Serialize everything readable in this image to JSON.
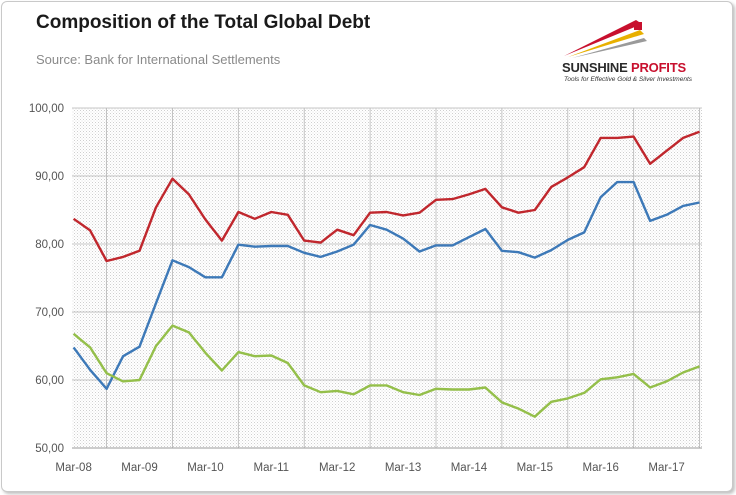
{
  "header": {
    "title": "Composition of the Total Global Debt",
    "subtitle": "Source: Bank for International Settlements"
  },
  "logo": {
    "name_part1": "SUNSHINE",
    "name_part2": "PROFITS",
    "tagline": "Tools for Effective Gold & Silver Investments",
    "colors": {
      "red": "#c8102e",
      "gold": "#e8b000",
      "dark": "#2b2b2b"
    }
  },
  "chart_data": {
    "type": "line",
    "title": "Composition of the Total Global Debt",
    "xlabel": "",
    "ylabel": "",
    "ylim": [
      50,
      100
    ],
    "yticks": [
      "50,00",
      "60,00",
      "70,00",
      "80,00",
      "90,00",
      "100,00"
    ],
    "xtick_labels": [
      "Mar-08",
      "Mar-09",
      "Mar-10",
      "Mar-11",
      "Mar-12",
      "Mar-13",
      "Mar-14",
      "Mar-15",
      "Mar-16",
      "Mar-17"
    ],
    "grid": true,
    "legend": "none",
    "x_start": "Mar-08",
    "x_step": "quarter",
    "series": [
      {
        "color": "#c0272d",
        "values": [
          83.7,
          82.0,
          77.5,
          78.1,
          79.0,
          85.4,
          89.6,
          87.3,
          83.6,
          80.5,
          84.7,
          83.7,
          84.7,
          84.3,
          80.5,
          80.2,
          82.1,
          81.3,
          84.6,
          84.7,
          84.2,
          84.6,
          86.5,
          86.6,
          87.3,
          88.1,
          85.4,
          84.6,
          85.0,
          88.4,
          89.8,
          91.3,
          95.6,
          95.6,
          95.8,
          91.8,
          93.7,
          95.6,
          96.5
        ]
      },
      {
        "color": "#3d79b8",
        "values": [
          64.8,
          61.5,
          58.7,
          63.5,
          64.9,
          71.3,
          77.6,
          76.6,
          75.1,
          75.1,
          79.9,
          79.6,
          79.7,
          79.7,
          78.7,
          78.1,
          78.9,
          79.9,
          82.8,
          82.1,
          80.8,
          78.9,
          79.8,
          79.8,
          81.0,
          82.2,
          79.0,
          78.8,
          78.0,
          79.1,
          80.6,
          81.7,
          86.9,
          89.1,
          89.1,
          83.4,
          84.3,
          85.6,
          86.1
        ]
      },
      {
        "color": "#94bf4a",
        "values": [
          66.8,
          64.8,
          61.0,
          59.8,
          60.0,
          65.0,
          68.0,
          67.0,
          64.0,
          61.4,
          64.1,
          63.5,
          63.6,
          62.5,
          59.2,
          58.2,
          58.4,
          57.9,
          59.2,
          59.2,
          58.2,
          57.8,
          58.7,
          58.6,
          58.6,
          58.9,
          56.7,
          55.8,
          54.6,
          56.8,
          57.3,
          58.1,
          60.1,
          60.4,
          60.9,
          58.9,
          59.8,
          61.1,
          62.0
        ]
      }
    ]
  }
}
